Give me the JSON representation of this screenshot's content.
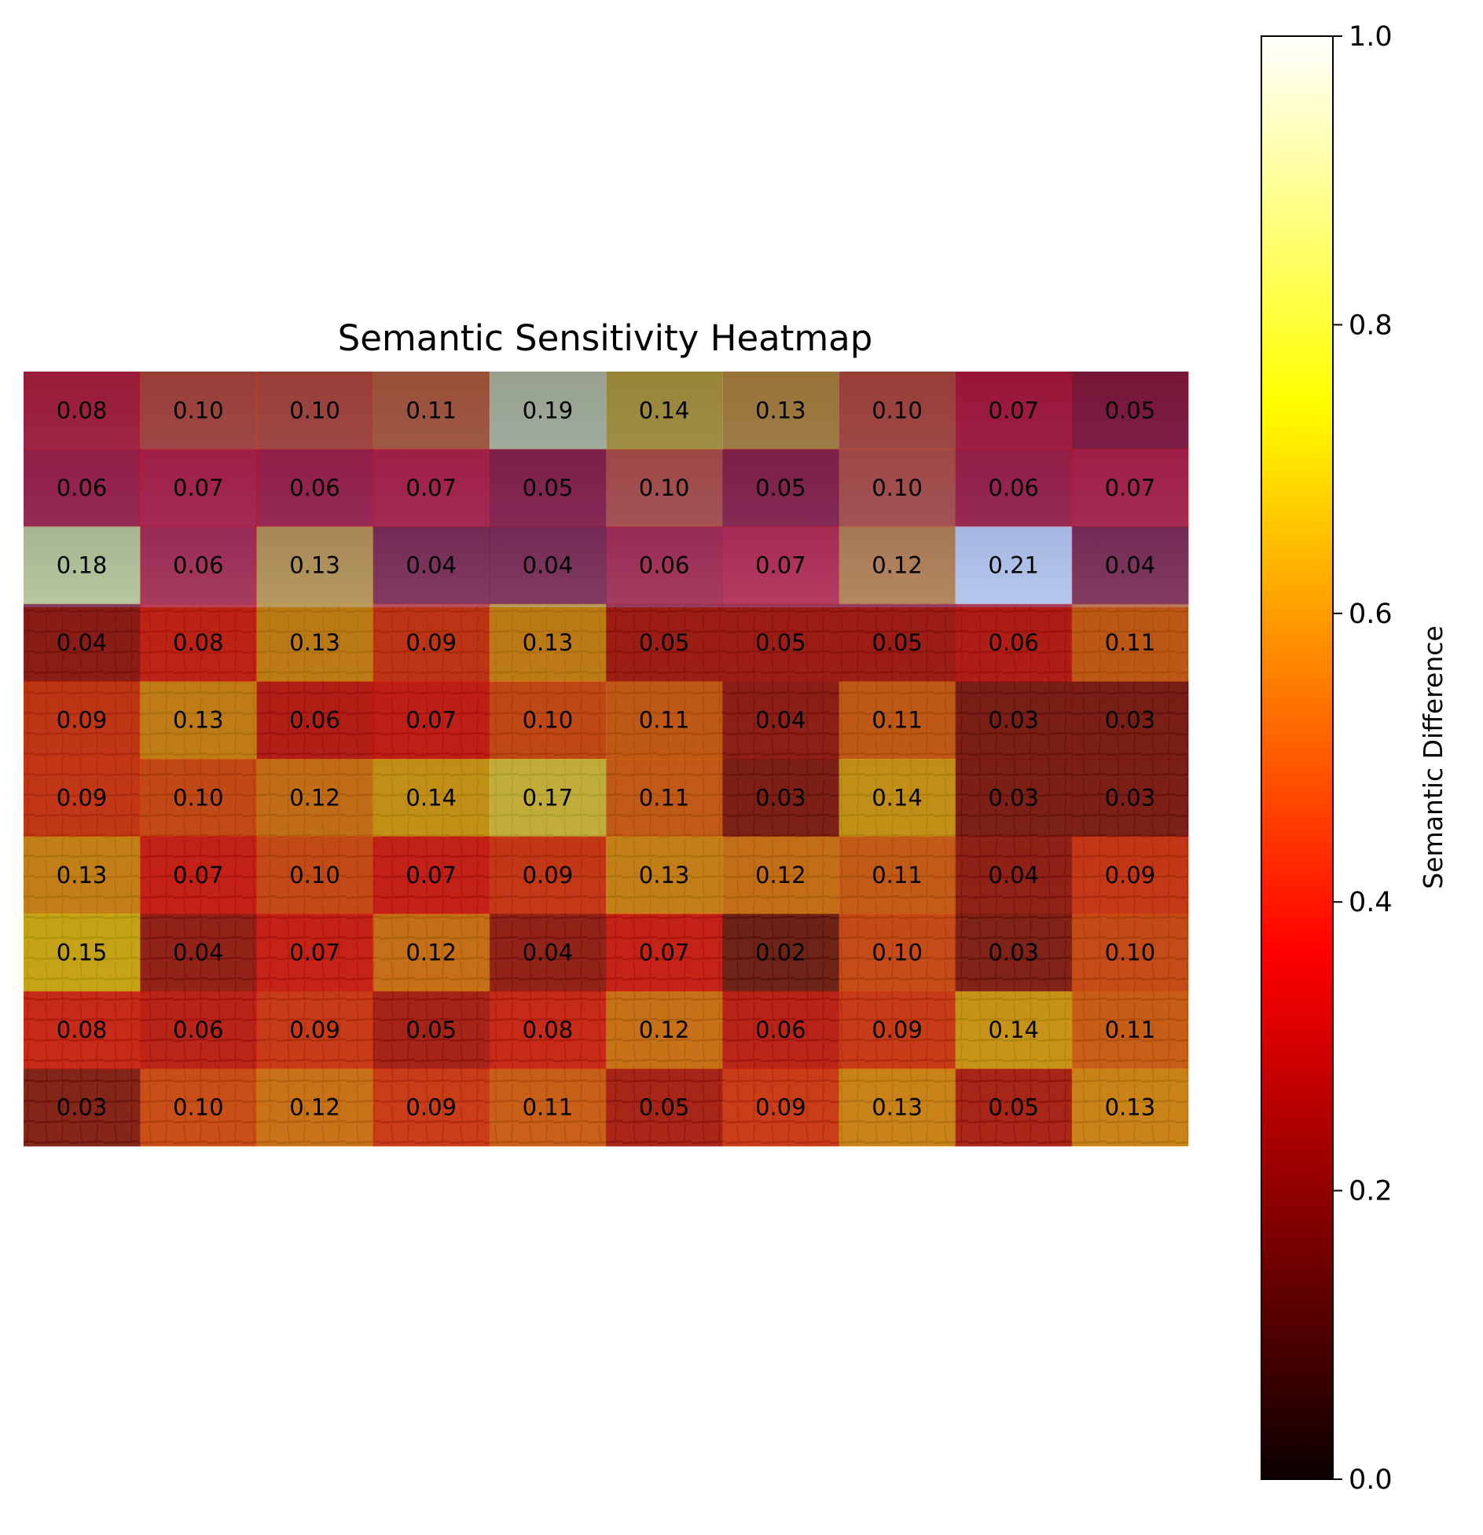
{
  "chart_data": {
    "type": "heatmap",
    "title": "Semantic Sensitivity Heatmap",
    "rows": 10,
    "cols": 10,
    "values": [
      [
        0.08,
        0.1,
        0.1,
        0.11,
        0.19,
        0.14,
        0.13,
        0.1,
        0.07,
        0.05
      ],
      [
        0.06,
        0.07,
        0.06,
        0.07,
        0.05,
        0.1,
        0.05,
        0.1,
        0.06,
        0.07
      ],
      [
        0.18,
        0.06,
        0.13,
        0.04,
        0.04,
        0.06,
        0.07,
        0.12,
        0.21,
        0.04
      ],
      [
        0.04,
        0.08,
        0.13,
        0.09,
        0.13,
        0.05,
        0.05,
        0.05,
        0.06,
        0.11
      ],
      [
        0.09,
        0.13,
        0.06,
        0.07,
        0.1,
        0.11,
        0.04,
        0.11,
        0.03,
        0.03
      ],
      [
        0.09,
        0.1,
        0.12,
        0.14,
        0.17,
        0.11,
        0.03,
        0.14,
        0.03,
        0.03
      ],
      [
        0.13,
        0.07,
        0.1,
        0.07,
        0.09,
        0.13,
        0.12,
        0.11,
        0.04,
        0.09
      ],
      [
        0.15,
        0.04,
        0.07,
        0.12,
        0.04,
        0.07,
        0.02,
        0.1,
        0.03,
        0.1
      ],
      [
        0.08,
        0.06,
        0.09,
        0.05,
        0.08,
        0.12,
        0.06,
        0.09,
        0.14,
        0.11
      ],
      [
        0.03,
        0.1,
        0.12,
        0.09,
        0.11,
        0.05,
        0.09,
        0.13,
        0.05,
        0.13
      ]
    ],
    "overlay_image": "cedar shingle roof under blue sky (background photo)",
    "colorbar": {
      "label": "Semantic Difference",
      "colormap": "hot",
      "range": [
        0.0,
        1.0
      ],
      "ticks": [
        0.0,
        0.2,
        0.4,
        0.6,
        0.8,
        1.0
      ],
      "tick_labels": [
        "0.0",
        "0.2",
        "0.4",
        "0.6",
        "0.8",
        "1.0"
      ]
    },
    "axes_visible": false,
    "grid": false
  }
}
